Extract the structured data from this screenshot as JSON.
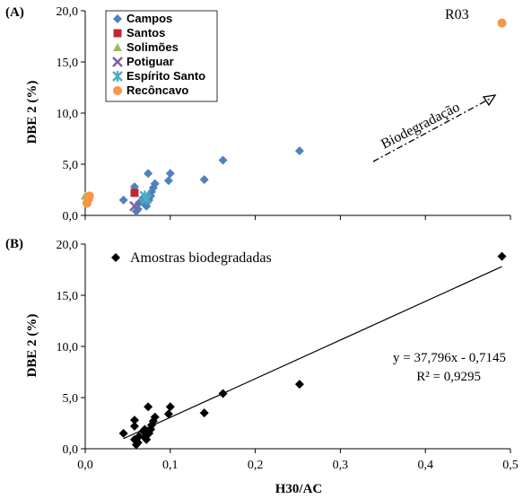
{
  "chart_data": [
    {
      "type": "scatter",
      "panel_label": "(A)",
      "title": "",
      "xlabel": "",
      "ylabel": "DBE 2 (%)",
      "xlim": [
        0,
        0.5
      ],
      "ylim": [
        0,
        20
      ],
      "x_ticks": [
        0.0,
        0.1,
        0.2,
        0.3,
        0.4,
        0.5
      ],
      "y_ticks": [
        "0,0",
        "5,0",
        "10,0",
        "15,0",
        "20,0"
      ],
      "legend_position": "top-left",
      "series": [
        {
          "name": "Campos",
          "marker": "diamond",
          "color": "#4f81bd",
          "points": [
            [
              0.045,
              1.5
            ],
            [
              0.058,
              2.8
            ],
            [
              0.06,
              0.4
            ],
            [
              0.062,
              0.6
            ],
            [
              0.063,
              1.2
            ],
            [
              0.068,
              1.7
            ],
            [
              0.07,
              1.1
            ],
            [
              0.072,
              0.9
            ],
            [
              0.074,
              4.1
            ],
            [
              0.075,
              1.5
            ],
            [
              0.077,
              1.9
            ],
            [
              0.078,
              2.3
            ],
            [
              0.08,
              2.7
            ],
            [
              0.082,
              3.1
            ],
            [
              0.098,
              3.4
            ],
            [
              0.1,
              4.1
            ],
            [
              0.14,
              3.5
            ],
            [
              0.162,
              5.4
            ],
            [
              0.252,
              6.3
            ]
          ]
        },
        {
          "name": "Santos",
          "marker": "square",
          "color": "#c0282f",
          "points": [
            [
              0.058,
              2.2
            ]
          ]
        },
        {
          "name": "Solimões",
          "marker": "triangle",
          "color": "#9bbb59",
          "points": [
            [
              0.0,
              1.9
            ]
          ]
        },
        {
          "name": "Potiguar",
          "marker": "x",
          "color": "#8064a2",
          "points": [
            [
              0.058,
              0.9
            ]
          ]
        },
        {
          "name": "Espírito Santo",
          "marker": "star",
          "color": "#4bacc6",
          "points": [
            [
              0.07,
              1.9
            ],
            [
              0.072,
              1.6
            ]
          ]
        },
        {
          "name": "Recôncavo",
          "marker": "circle",
          "color": "#f79646",
          "points": [
            [
              0.002,
              1.2
            ],
            [
              0.004,
              1.6
            ],
            [
              0.005,
              1.9
            ],
            [
              0.49,
              18.8
            ]
          ]
        }
      ],
      "annotations": [
        {
          "text": "R03",
          "x": 0.49,
          "y": 18.8
        },
        {
          "text": "Biodegradação",
          "kind": "dashed-arrow",
          "from": [
            0.36,
            5.0
          ],
          "to": [
            0.49,
            11.9
          ]
        }
      ]
    },
    {
      "type": "scatter",
      "panel_label": "(B)",
      "title": "",
      "xlabel": "H30/AC",
      "ylabel": "DBE 2 (%)",
      "xlim": [
        0,
        0.5
      ],
      "ylim": [
        0,
        20
      ],
      "x_ticks": [
        "0,0",
        "0,1",
        "0,2",
        "0,3",
        "0,4",
        "0,5"
      ],
      "y_ticks": [
        "0,0",
        "5,0",
        "10,0",
        "15,0",
        "20,0"
      ],
      "legend_position": "top-left",
      "series": [
        {
          "name": "Amostras biodegradadas",
          "marker": "diamond",
          "color": "#000000",
          "points": [
            [
              0.045,
              1.5
            ],
            [
              0.058,
              2.8
            ],
            [
              0.058,
              2.2
            ],
            [
              0.058,
              0.9
            ],
            [
              0.06,
              0.4
            ],
            [
              0.062,
              0.6
            ],
            [
              0.063,
              1.2
            ],
            [
              0.068,
              1.7
            ],
            [
              0.07,
              1.9
            ],
            [
              0.07,
              1.1
            ],
            [
              0.072,
              0.9
            ],
            [
              0.072,
              1.6
            ],
            [
              0.074,
              4.1
            ],
            [
              0.075,
              1.5
            ],
            [
              0.077,
              1.9
            ],
            [
              0.078,
              2.3
            ],
            [
              0.08,
              2.7
            ],
            [
              0.082,
              3.1
            ],
            [
              0.098,
              3.4
            ],
            [
              0.1,
              4.1
            ],
            [
              0.14,
              3.5
            ],
            [
              0.162,
              5.4
            ],
            [
              0.252,
              6.3
            ],
            [
              0.49,
              18.8
            ]
          ]
        }
      ],
      "trendline": {
        "slope": 37.796,
        "intercept": -0.7145,
        "x_range": [
          0.045,
          0.49
        ],
        "equation": "y = 37,796x - 0,7145",
        "r2_label": "R² = 0,9295"
      }
    }
  ]
}
